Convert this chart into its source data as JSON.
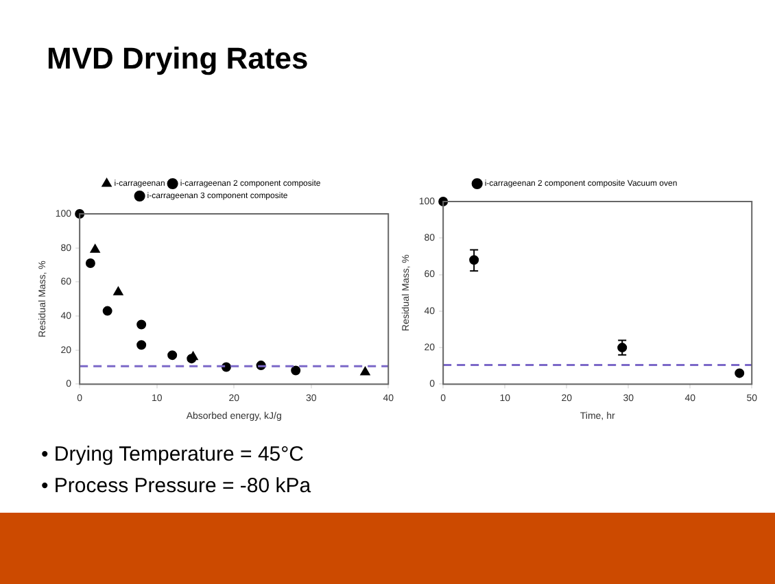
{
  "chart_data": [
    {
      "type": "scatter",
      "title": "MVD Drying Rates",
      "xlabel": "Absorbed energy, kJ/g",
      "ylabel": "Residual Mass, %",
      "xlim": [
        0,
        40
      ],
      "xticks": [
        0,
        10,
        20,
        30,
        40
      ],
      "ylim": [
        0,
        100
      ],
      "yticks": [
        0,
        20,
        40,
        60,
        80,
        100
      ],
      "grid": false,
      "legend": "top",
      "series": [
        {
          "name": "i-carrageenan",
          "color": "#000000",
          "marker": "triangle",
          "x": [
            2,
            5,
            14.7,
            37
          ],
          "values": [
            79,
            54,
            16,
            7
          ]
        },
        {
          "name": "i-carrageenan 2 component composite",
          "color": "#000000",
          "marker": "circle",
          "x": [
            1.4,
            3.6,
            8,
            14.5,
            23.5
          ],
          "values": [
            71,
            43,
            23,
            15,
            11
          ]
        },
        {
          "name": "i-carrageenan 3 component composite",
          "color": "#000000",
          "marker": "circle",
          "x": [
            0,
            8,
            12,
            19,
            28
          ],
          "values": [
            100,
            35,
            17,
            10,
            8
          ]
        }
      ],
      "ref_lines": [
        {
          "axis": "y",
          "value": 10.5,
          "color": "#7b68c8",
          "line_style": "dashed"
        }
      ],
      "annotations": [
        "•  Drying Temperature =  45°C",
        "•  Process Pressure = -80 kPa"
      ]
    },
    {
      "type": "scatter",
      "xlabel": "Time, hr",
      "ylabel": "Residual Mass, %",
      "xlim": [
        0,
        50
      ],
      "xticks": [
        0,
        10,
        20,
        30,
        40,
        50
      ],
      "ylim": [
        0,
        100
      ],
      "yticks": [
        0,
        20,
        40,
        60,
        80,
        100
      ],
      "grid": false,
      "legend": "top",
      "series": [
        {
          "name": "i-carrageenan 2 component composite Vacuum oven",
          "color": "#000000",
          "marker": "circle",
          "x": [
            0,
            5,
            29,
            48
          ],
          "values": [
            100,
            68,
            20,
            6
          ],
          "errors": [
            null,
            [
              62,
              73.5
            ],
            [
              16,
              24
            ],
            null
          ]
        }
      ],
      "ref_lines": [
        {
          "axis": "y",
          "value": 10.5,
          "color": "#7b68c8",
          "line_style": "dashed"
        }
      ]
    }
  ]
}
